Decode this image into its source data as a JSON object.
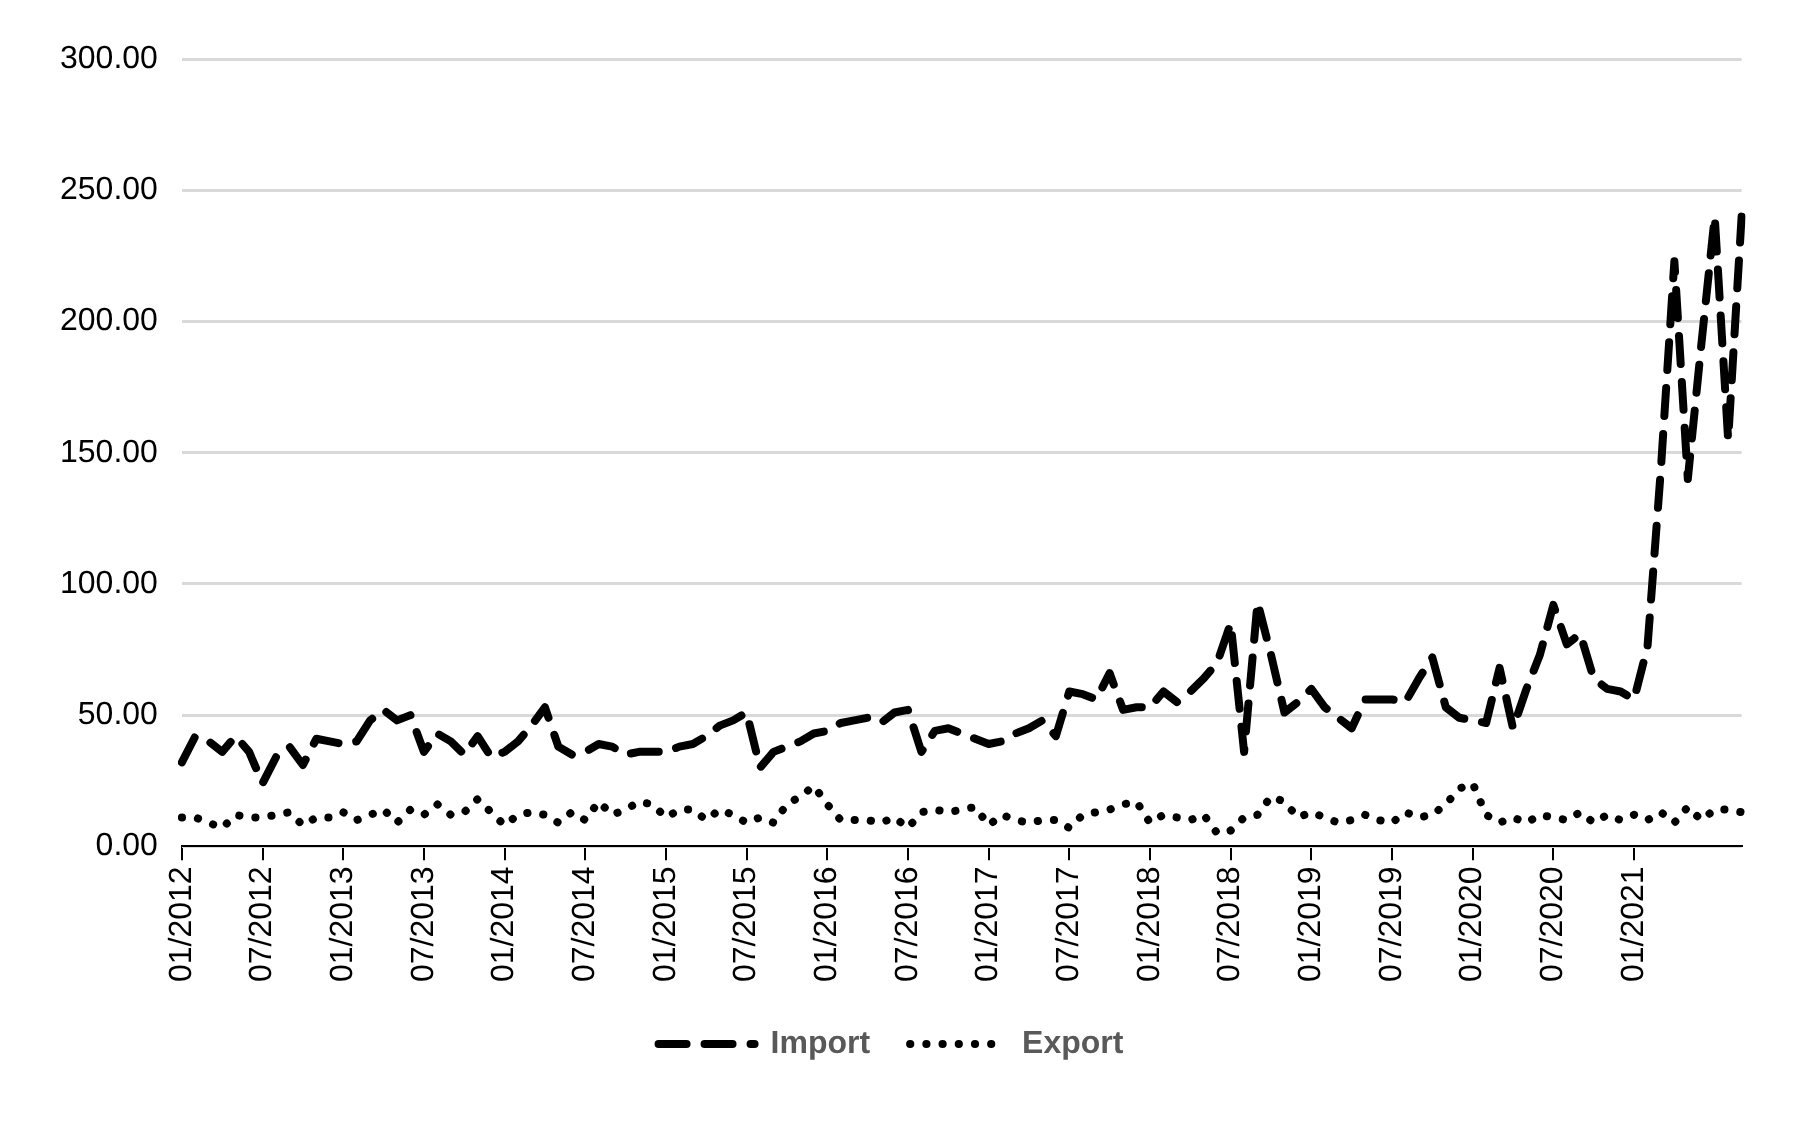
{
  "chart_data": {
    "type": "line",
    "categories": [
      "01/2012",
      null,
      null,
      null,
      null,
      null,
      "07/2012",
      null,
      null,
      null,
      null,
      null,
      "01/2013",
      null,
      null,
      null,
      null,
      null,
      "07/2013",
      null,
      null,
      null,
      null,
      null,
      "01/2014",
      null,
      null,
      null,
      null,
      null,
      "07/2014",
      null,
      null,
      null,
      null,
      null,
      "01/2015",
      null,
      null,
      null,
      null,
      null,
      "07/2015",
      null,
      null,
      null,
      null,
      null,
      "01/2016",
      null,
      null,
      null,
      null,
      null,
      "07/2016",
      null,
      null,
      null,
      null,
      null,
      "01/2017",
      null,
      null,
      null,
      null,
      null,
      "07/2017",
      null,
      null,
      null,
      null,
      null,
      "01/2018",
      null,
      null,
      null,
      null,
      null,
      "07/2018",
      null,
      null,
      null,
      null,
      null,
      "01/2019",
      null,
      null,
      null,
      null,
      null,
      "07/2019",
      null,
      null,
      null,
      null,
      null,
      "01/2020",
      null,
      null,
      null,
      null,
      null,
      "07/2020",
      null,
      null,
      null,
      null,
      null,
      "01/2021",
      null,
      null,
      null,
      null,
      null,
      null,
      null,
      null
    ],
    "series": [
      {
        "name": "Import",
        "color": "#000000",
        "line_style": "dashed",
        "values": [
          32,
          42,
          40,
          36,
          42,
          36,
          24,
          34,
          38,
          31,
          41,
          40,
          39,
          40,
          48,
          52,
          48,
          50,
          36,
          43,
          40,
          35,
          42,
          34,
          36,
          40,
          46,
          53,
          38,
          35,
          36,
          39,
          38,
          35,
          36,
          36,
          36,
          38,
          39,
          42,
          46,
          48,
          51,
          30,
          36,
          38,
          40,
          43,
          44,
          47,
          48,
          49,
          47,
          51,
          52,
          36,
          44,
          45,
          43,
          41,
          39,
          40,
          43,
          45,
          48,
          42,
          59,
          58,
          56,
          66,
          52,
          53,
          53,
          59,
          55,
          59,
          64,
          70,
          85,
          36,
          93,
          73,
          51,
          55,
          60,
          53,
          49,
          45,
          56,
          56,
          56,
          55,
          64,
          72,
          53,
          49,
          48,
          47,
          68,
          45,
          60,
          73,
          92,
          77,
          81,
          64,
          60,
          59,
          56,
          76,
          144,
          223,
          140,
          191,
          240,
          155,
          240
        ]
      },
      {
        "name": "Export",
        "color": "#000000",
        "line_style": "dotted",
        "values": [
          11,
          11,
          9,
          7,
          12,
          11,
          11,
          12,
          13,
          8,
          11,
          11,
          13,
          10,
          12,
          14,
          9,
          14,
          12,
          16,
          12,
          13,
          18,
          13,
          8,
          12,
          13,
          12,
          9,
          13,
          10,
          17,
          12,
          14,
          17,
          16,
          11,
          14,
          14,
          10,
          14,
          12,
          9,
          11,
          9,
          16,
          19,
          23,
          16,
          10,
          10,
          10,
          9,
          11,
          7,
          13,
          14,
          13,
          14,
          15,
          8,
          12,
          10,
          9,
          10,
          10,
          7,
          12,
          13,
          14,
          16,
          17,
          9,
          12,
          11,
          10,
          12,
          5,
          6,
          11,
          12,
          19,
          17,
          11,
          13,
          11,
          9,
          10,
          12,
          10,
          9,
          13,
          11,
          12,
          16,
          22,
          24,
          12,
          9,
          11,
          9,
          12,
          11,
          10,
          13,
          9,
          12,
          10,
          12,
          10,
          13,
          9,
          15,
          10,
          14,
          14,
          13
        ]
      }
    ],
    "ylim": [
      0,
      300
    ],
    "yticks": [
      {
        "value": 0,
        "label": "0.00"
      },
      {
        "value": 50,
        "label": "50.00"
      },
      {
        "value": 100,
        "label": "100.00"
      },
      {
        "value": 150,
        "label": "150.00"
      },
      {
        "value": 200,
        "label": "200.00"
      },
      {
        "value": 250,
        "label": "250.00"
      },
      {
        "value": 300,
        "label": "300.00"
      }
    ],
    "grid": "y",
    "legend": "bottom",
    "marker": "none"
  }
}
